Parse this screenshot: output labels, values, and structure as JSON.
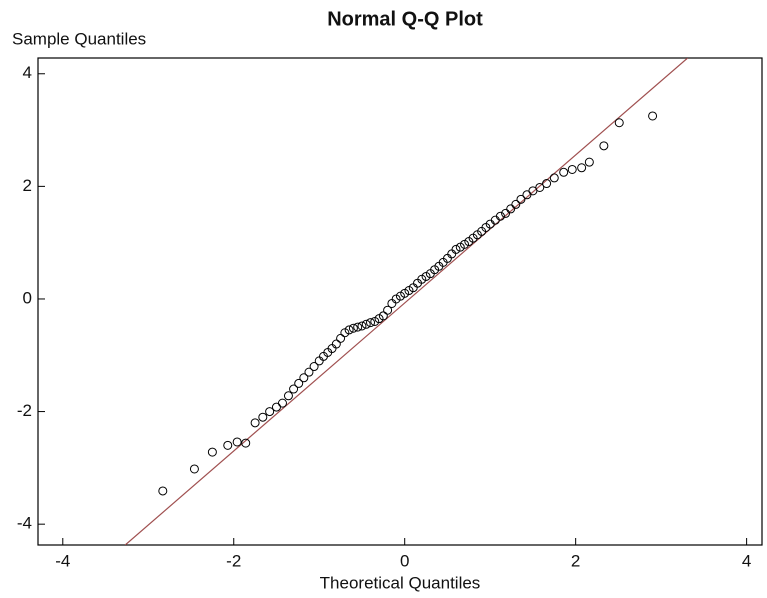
{
  "chart_data": {
    "type": "scatter",
    "title": "Normal Q-Q Plot",
    "xlabel": "Theoretical Quantiles",
    "ylabel": "Sample Quantiles",
    "xlim": [
      -4.29,
      4.18
    ],
    "ylim": [
      -4.37,
      4.28
    ],
    "xticks": [
      -4,
      -2,
      0,
      2,
      4
    ],
    "yticks": [
      -4,
      -2,
      0,
      2,
      4
    ],
    "series": [
      {
        "color": "#000000",
        "x": [
          -2.83,
          -2.46,
          -2.25,
          -2.07,
          -1.96,
          -1.86,
          -1.75,
          -1.66,
          -1.58,
          -1.5,
          -1.43,
          -1.36,
          -1.3,
          -1.24,
          -1.18,
          -1.12,
          -1.06,
          -1.0,
          -0.95,
          -0.9,
          -0.85,
          -0.8,
          -0.75,
          -0.7,
          -0.65,
          -0.6,
          -0.55,
          -0.5,
          -0.45,
          -0.4,
          -0.35,
          -0.3,
          -0.25,
          -0.2,
          -0.15,
          -0.1,
          -0.05,
          0,
          0.05,
          0.1,
          0.15,
          0.2,
          0.25,
          0.3,
          0.35,
          0.4,
          0.45,
          0.5,
          0.55,
          0.6,
          0.65,
          0.7,
          0.75,
          0.8,
          0.85,
          0.9,
          0.95,
          1.0,
          1.06,
          1.12,
          1.18,
          1.24,
          1.3,
          1.36,
          1.43,
          1.5,
          1.58,
          1.66,
          1.75,
          1.86,
          1.96,
          2.07,
          2.16,
          2.33,
          2.51,
          2.9
        ],
        "values": [
          -3.41,
          -3.02,
          -2.72,
          -2.6,
          -2.54,
          -2.56,
          -2.2,
          -2.1,
          -2.0,
          -1.92,
          -1.85,
          -1.72,
          -1.6,
          -1.5,
          -1.4,
          -1.3,
          -1.2,
          -1.1,
          -1.02,
          -0.95,
          -0.88,
          -0.8,
          -0.7,
          -0.6,
          -0.55,
          -0.52,
          -0.5,
          -0.48,
          -0.45,
          -0.42,
          -0.4,
          -0.35,
          -0.3,
          -0.2,
          -0.08,
          0.0,
          0.05,
          0.1,
          0.15,
          0.2,
          0.28,
          0.35,
          0.4,
          0.45,
          0.52,
          0.58,
          0.65,
          0.72,
          0.8,
          0.88,
          0.92,
          0.97,
          1.02,
          1.08,
          1.14,
          1.2,
          1.27,
          1.33,
          1.4,
          1.47,
          1.52,
          1.6,
          1.68,
          1.77,
          1.85,
          1.92,
          1.98,
          2.05,
          2.15,
          2.25,
          2.3,
          2.33,
          2.43,
          2.72,
          3.13,
          3.25
        ]
      }
    ],
    "reference_line": {
      "x": [
        -3.27,
        3.31
      ],
      "values": [
        -4.37,
        4.28
      ],
      "color": "#a05050"
    }
  }
}
